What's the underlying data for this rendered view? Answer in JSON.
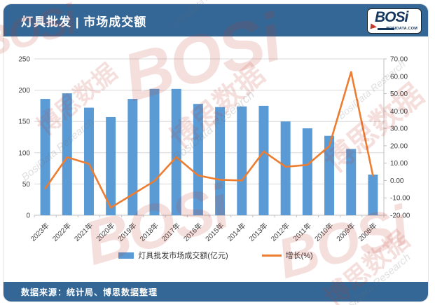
{
  "header": {
    "title": "灯具批发 | 市场成交额",
    "logo": {
      "text": "BOSi",
      "subtext": "BOSIDATA.COM"
    }
  },
  "footer": {
    "source": "数据来源：统计局、博思数据整理"
  },
  "watermarks": {
    "brand": "BOSi",
    "cn": "博思数据",
    "en": "BosiData Research"
  },
  "colors": {
    "header_blue": "#346796",
    "bar_blue": "#5B9BD5",
    "line_orange": "#ED7D31",
    "grid_gray": "#D9D9D9",
    "axis_gray": "#BFBFBF"
  },
  "chart_data": {
    "type": "bar",
    "subtype": "combo-bar-line",
    "title": "灯具批发 | 市场成交额",
    "xlabel": "",
    "ylabel_left": "灯具批发市场成交额(亿元)",
    "ylabel_right": "增长(%)",
    "grid": true,
    "legend_position": "bottom",
    "categories": [
      "2023年",
      "2022年",
      "2021年",
      "2020年",
      "2019年",
      "2018年",
      "2017年",
      "2016年",
      "2015年",
      "2014年",
      "2013年",
      "2012年",
      "2011年",
      "2010年",
      "2009年",
      "2008年"
    ],
    "series": [
      {
        "name": "灯具批发市场成交额(亿元)",
        "type": "bar",
        "axis": "left",
        "color": "#5B9BD5",
        "values": [
          186,
          195,
          172,
          157,
          186,
          202,
          202,
          178,
          173,
          174,
          175,
          150,
          139,
          127,
          106,
          65
        ]
      },
      {
        "name": "增长(%)",
        "type": "line",
        "axis": "right",
        "color": "#ED7D31",
        "values": [
          -4.6,
          13.4,
          9.6,
          -15.6,
          -8.0,
          -0.3,
          13.5,
          2.9,
          0.4,
          0.0,
          16.7,
          7.9,
          9.0,
          19.8,
          62.5,
          2.8
        ]
      }
    ],
    "left_axis": {
      "min": 0,
      "max": 250,
      "step": 50,
      "ticks": [
        "0",
        "50",
        "100",
        "150",
        "200",
        "250"
      ]
    },
    "right_axis": {
      "min": -20,
      "max": 70,
      "step": 10,
      "ticks": [
        "-20.00",
        "-10.00",
        "0.00",
        "10.00",
        "20.00",
        "30.00",
        "40.00",
        "50.00",
        "60.00",
        "70.00"
      ]
    }
  }
}
